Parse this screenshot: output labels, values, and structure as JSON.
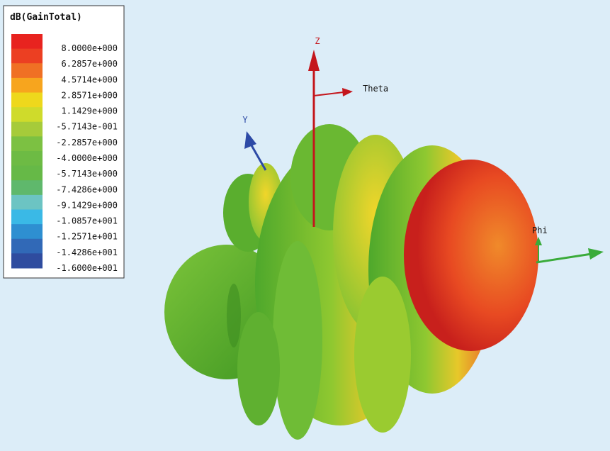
{
  "legend": {
    "title": "dB(GainTotal)",
    "labels": [
      "8.0000e+000",
      "6.2857e+000",
      "4.5714e+000",
      "2.8571e+000",
      "1.1429e+000",
      "-5.7143e-001",
      "-2.2857e+000",
      "-4.0000e+000",
      "-5.7143e+000",
      "-7.4286e+000",
      "-9.1429e+000",
      "-1.0857e+001",
      "-1.2571e+001",
      "-1.4286e+001",
      "-1.6000e+001"
    ],
    "colors": [
      "#e8231f",
      "#ec3f22",
      "#f07024",
      "#f7a51e",
      "#eed81c",
      "#cfdb2b",
      "#a6cb3a",
      "#7cc142",
      "#6dbb44",
      "#66b947",
      "#5fb86c",
      "#6cc4c3",
      "#3ab9e6",
      "#2e8fd1",
      "#3169b7",
      "#2f4c9f"
    ]
  },
  "axes": {
    "z": "Z",
    "theta": "Theta",
    "y": "Y",
    "phi": "Phi"
  }
}
